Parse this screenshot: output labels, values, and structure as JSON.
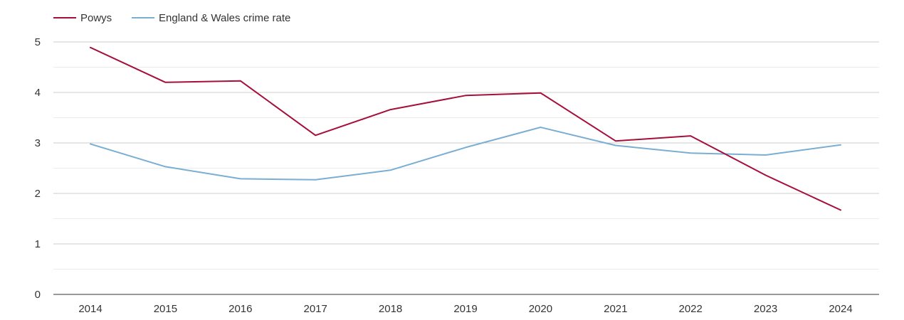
{
  "chart_data": {
    "type": "line",
    "categories": [
      "2014",
      "2015",
      "2016",
      "2017",
      "2018",
      "2019",
      "2020",
      "2021",
      "2022",
      "2023",
      "2024"
    ],
    "series": [
      {
        "name": "Powys",
        "color": "#a50f3a",
        "values": [
          4.89,
          4.2,
          4.23,
          3.15,
          3.66,
          3.94,
          3.99,
          3.04,
          3.14,
          2.36,
          1.67
        ]
      },
      {
        "name": "England & Wales crime rate",
        "color": "#7aaed3",
        "values": [
          2.98,
          2.53,
          2.29,
          2.27,
          2.46,
          2.91,
          3.31,
          2.95,
          2.8,
          2.76,
          2.96
        ]
      }
    ],
    "yticks": [
      "0",
      "1",
      "2",
      "3",
      "4",
      "5"
    ],
    "ylim": [
      0,
      5
    ],
    "grid": true,
    "legend_position": "top-left",
    "title": "",
    "xlabel": "",
    "ylabel": ""
  }
}
